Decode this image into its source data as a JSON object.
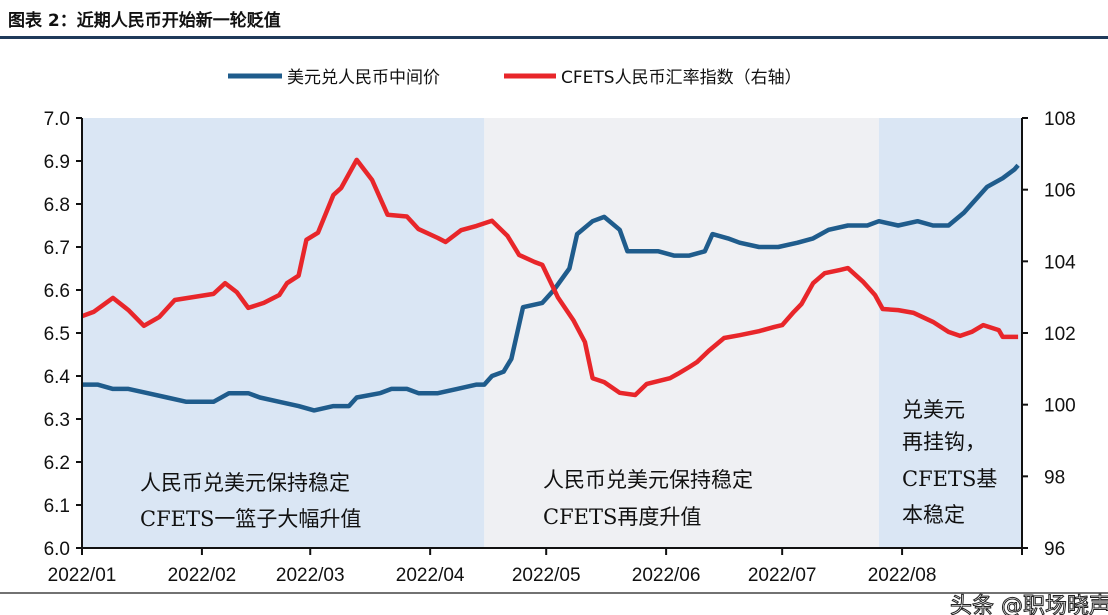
{
  "title": "图表 2：近期人民币开始新一轮贬值",
  "watermark": "头条 @职场晓声",
  "chart_data": {
    "type": "line",
    "title": "",
    "xlabel": "",
    "ylabel": "",
    "y2label": "",
    "xlim": [
      "2022-01-01",
      "2022-09-01"
    ],
    "ylim": [
      6.0,
      7.0
    ],
    "y2lim": [
      96,
      108
    ],
    "grid": false,
    "legend_position": "top",
    "x_tick_labels": [
      "2022/01",
      "2022/02",
      "2022/03",
      "2022/04",
      "2022/05",
      "2022/06",
      "2022/07",
      "2022/08"
    ],
    "x_ticks": [
      "2022-01-01",
      "2022-02-01",
      "2022-03-01",
      "2022-04-01",
      "2022-05-01",
      "2022-06-01",
      "2022-07-01",
      "2022-08-01",
      "2022-09-01"
    ],
    "y_tick_labels": [
      "6.0",
      "6.1",
      "6.2",
      "6.3",
      "6.4",
      "6.5",
      "6.6",
      "6.7",
      "6.8",
      "6.9",
      "7.0"
    ],
    "y2_tick_labels": [
      "96",
      "98",
      "100",
      "102",
      "104",
      "106",
      "108"
    ],
    "shaded_periods": [
      {
        "from": "2022-01-01",
        "to": "2022-04-15",
        "color": "#dae6f4",
        "label_lines": [
          "人民币兑美元保持稳定",
          "CFETS一篮子大幅升值"
        ]
      },
      {
        "from": "2022-04-15",
        "to": "2022-07-26",
        "color": "#eff0f3",
        "label_lines": [
          "人民币兑美元保持稳定",
          "CFETS再度升值"
        ]
      },
      {
        "from": "2022-07-26",
        "to": "2022-09-01",
        "color": "#dae6f4",
        "label_lines": [
          "兑美元",
          "再挂钩，",
          "CFETS基",
          "本稳定"
        ]
      }
    ],
    "series": [
      {
        "name": "美元兑人民币中间价",
        "axis": "left",
        "color": "#1f5c8c",
        "points": [
          [
            "2022-01-01",
            6.38
          ],
          [
            "2022-01-05",
            6.38
          ],
          [
            "2022-01-09",
            6.37
          ],
          [
            "2022-01-13",
            6.37
          ],
          [
            "2022-01-18",
            6.36
          ],
          [
            "2022-01-23",
            6.35
          ],
          [
            "2022-01-28",
            6.34
          ],
          [
            "2022-02-04",
            6.34
          ],
          [
            "2022-02-08",
            6.36
          ],
          [
            "2022-02-13",
            6.36
          ],
          [
            "2022-02-16",
            6.35
          ],
          [
            "2022-02-21",
            6.34
          ],
          [
            "2022-02-26",
            6.33
          ],
          [
            "2022-03-02",
            6.32
          ],
          [
            "2022-03-07",
            6.33
          ],
          [
            "2022-03-11",
            6.33
          ],
          [
            "2022-03-13",
            6.35
          ],
          [
            "2022-03-19",
            6.36
          ],
          [
            "2022-03-22",
            6.37
          ],
          [
            "2022-03-26",
            6.37
          ],
          [
            "2022-03-29",
            6.36
          ],
          [
            "2022-04-03",
            6.36
          ],
          [
            "2022-04-08",
            6.37
          ],
          [
            "2022-04-13",
            6.38
          ],
          [
            "2022-04-15",
            6.38
          ],
          [
            "2022-04-17",
            6.4
          ],
          [
            "2022-04-20",
            6.41
          ],
          [
            "2022-04-22",
            6.44
          ],
          [
            "2022-04-25",
            6.56
          ],
          [
            "2022-04-30",
            6.57
          ],
          [
            "2022-05-03",
            6.6
          ],
          [
            "2022-05-07",
            6.65
          ],
          [
            "2022-05-09",
            6.73
          ],
          [
            "2022-05-13",
            6.76
          ],
          [
            "2022-05-16",
            6.77
          ],
          [
            "2022-05-20",
            6.74
          ],
          [
            "2022-05-22",
            6.69
          ],
          [
            "2022-05-26",
            6.69
          ],
          [
            "2022-05-30",
            6.69
          ],
          [
            "2022-06-03",
            6.68
          ],
          [
            "2022-06-07",
            6.68
          ],
          [
            "2022-06-11",
            6.69
          ],
          [
            "2022-06-13",
            6.73
          ],
          [
            "2022-06-17",
            6.72
          ],
          [
            "2022-06-20",
            6.71
          ],
          [
            "2022-06-25",
            6.7
          ],
          [
            "2022-06-30",
            6.7
          ],
          [
            "2022-07-05",
            6.71
          ],
          [
            "2022-07-09",
            6.72
          ],
          [
            "2022-07-13",
            6.74
          ],
          [
            "2022-07-18",
            6.75
          ],
          [
            "2022-07-23",
            6.75
          ],
          [
            "2022-07-26",
            6.76
          ],
          [
            "2022-07-31",
            6.75
          ],
          [
            "2022-08-05",
            6.76
          ],
          [
            "2022-08-09",
            6.75
          ],
          [
            "2022-08-13",
            6.75
          ],
          [
            "2022-08-17",
            6.78
          ],
          [
            "2022-08-19",
            6.8
          ],
          [
            "2022-08-23",
            6.84
          ],
          [
            "2022-08-27",
            6.86
          ],
          [
            "2022-08-30",
            6.88
          ],
          [
            "2022-08-31",
            6.89
          ]
        ]
      },
      {
        "name": "CFETS人民币汇率指数（右轴）",
        "axis": "right",
        "color": "#e8262a",
        "points": [
          [
            "2022-01-01",
            102.47
          ],
          [
            "2022-01-04",
            102.59
          ],
          [
            "2022-01-09",
            102.98
          ],
          [
            "2022-01-13",
            102.64
          ],
          [
            "2022-01-17",
            102.2
          ],
          [
            "2022-01-21",
            102.45
          ],
          [
            "2022-01-25",
            102.92
          ],
          [
            "2022-02-04",
            103.09
          ],
          [
            "2022-02-07",
            103.39
          ],
          [
            "2022-02-10",
            103.14
          ],
          [
            "2022-02-13",
            102.7
          ],
          [
            "2022-02-17",
            102.84
          ],
          [
            "2022-02-21",
            103.06
          ],
          [
            "2022-02-23",
            103.39
          ],
          [
            "2022-02-26",
            103.6
          ],
          [
            "2022-02-28",
            104.6
          ],
          [
            "2022-03-03",
            104.8
          ],
          [
            "2022-03-07",
            105.85
          ],
          [
            "2022-03-09",
            106.05
          ],
          [
            "2022-03-13",
            106.83
          ],
          [
            "2022-03-17",
            106.27
          ],
          [
            "2022-03-21",
            105.3
          ],
          [
            "2022-03-26",
            105.25
          ],
          [
            "2022-03-29",
            104.9
          ],
          [
            "2022-04-03",
            104.65
          ],
          [
            "2022-04-05",
            104.54
          ],
          [
            "2022-04-09",
            104.87
          ],
          [
            "2022-04-13",
            104.99
          ],
          [
            "2022-04-17",
            105.13
          ],
          [
            "2022-04-21",
            104.71
          ],
          [
            "2022-04-24",
            104.18
          ],
          [
            "2022-04-28",
            103.98
          ],
          [
            "2022-04-30",
            103.9
          ],
          [
            "2022-05-04",
            103.0
          ],
          [
            "2022-05-08",
            102.36
          ],
          [
            "2022-05-11",
            101.75
          ],
          [
            "2022-05-13",
            100.74
          ],
          [
            "2022-05-16",
            100.63
          ],
          [
            "2022-05-20",
            100.33
          ],
          [
            "2022-05-24",
            100.27
          ],
          [
            "2022-05-27",
            100.58
          ],
          [
            "2022-06-02",
            100.74
          ],
          [
            "2022-06-04",
            100.86
          ],
          [
            "2022-06-07",
            101.05
          ],
          [
            "2022-06-09",
            101.19
          ],
          [
            "2022-06-12",
            101.5
          ],
          [
            "2022-06-16",
            101.86
          ],
          [
            "2022-06-20",
            101.94
          ],
          [
            "2022-06-25",
            102.05
          ],
          [
            "2022-06-29",
            102.17
          ],
          [
            "2022-07-01",
            102.22
          ],
          [
            "2022-07-04",
            102.59
          ],
          [
            "2022-07-06",
            102.81
          ],
          [
            "2022-07-09",
            103.39
          ],
          [
            "2022-07-12",
            103.67
          ],
          [
            "2022-07-16",
            103.76
          ],
          [
            "2022-07-18",
            103.81
          ],
          [
            "2022-07-22",
            103.42
          ],
          [
            "2022-07-25",
            103.06
          ],
          [
            "2022-07-27",
            102.67
          ],
          [
            "2022-07-31",
            102.64
          ],
          [
            "2022-08-04",
            102.56
          ],
          [
            "2022-08-09",
            102.31
          ],
          [
            "2022-08-13",
            102.03
          ],
          [
            "2022-08-16",
            101.92
          ],
          [
            "2022-08-19",
            102.03
          ],
          [
            "2022-08-22",
            102.22
          ],
          [
            "2022-08-26",
            102.08
          ],
          [
            "2022-08-27",
            101.89
          ],
          [
            "2022-08-31",
            101.89
          ]
        ]
      }
    ]
  }
}
